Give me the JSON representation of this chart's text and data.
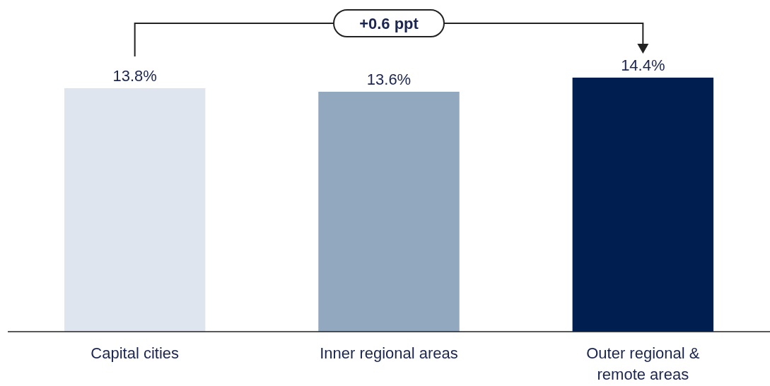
{
  "chart_data": {
    "type": "bar",
    "categories": [
      "Capital cities",
      "Inner regional areas",
      "Outer regional & remote areas"
    ],
    "values": [
      13.8,
      13.6,
      14.4
    ],
    "colors": [
      "#dfe5ef",
      "#91a8be",
      "#001e50"
    ],
    "value_labels": [
      "13.8%",
      "13.6%",
      "14.4%"
    ],
    "annotations": [
      "+0.6 ppt"
    ]
  }
}
